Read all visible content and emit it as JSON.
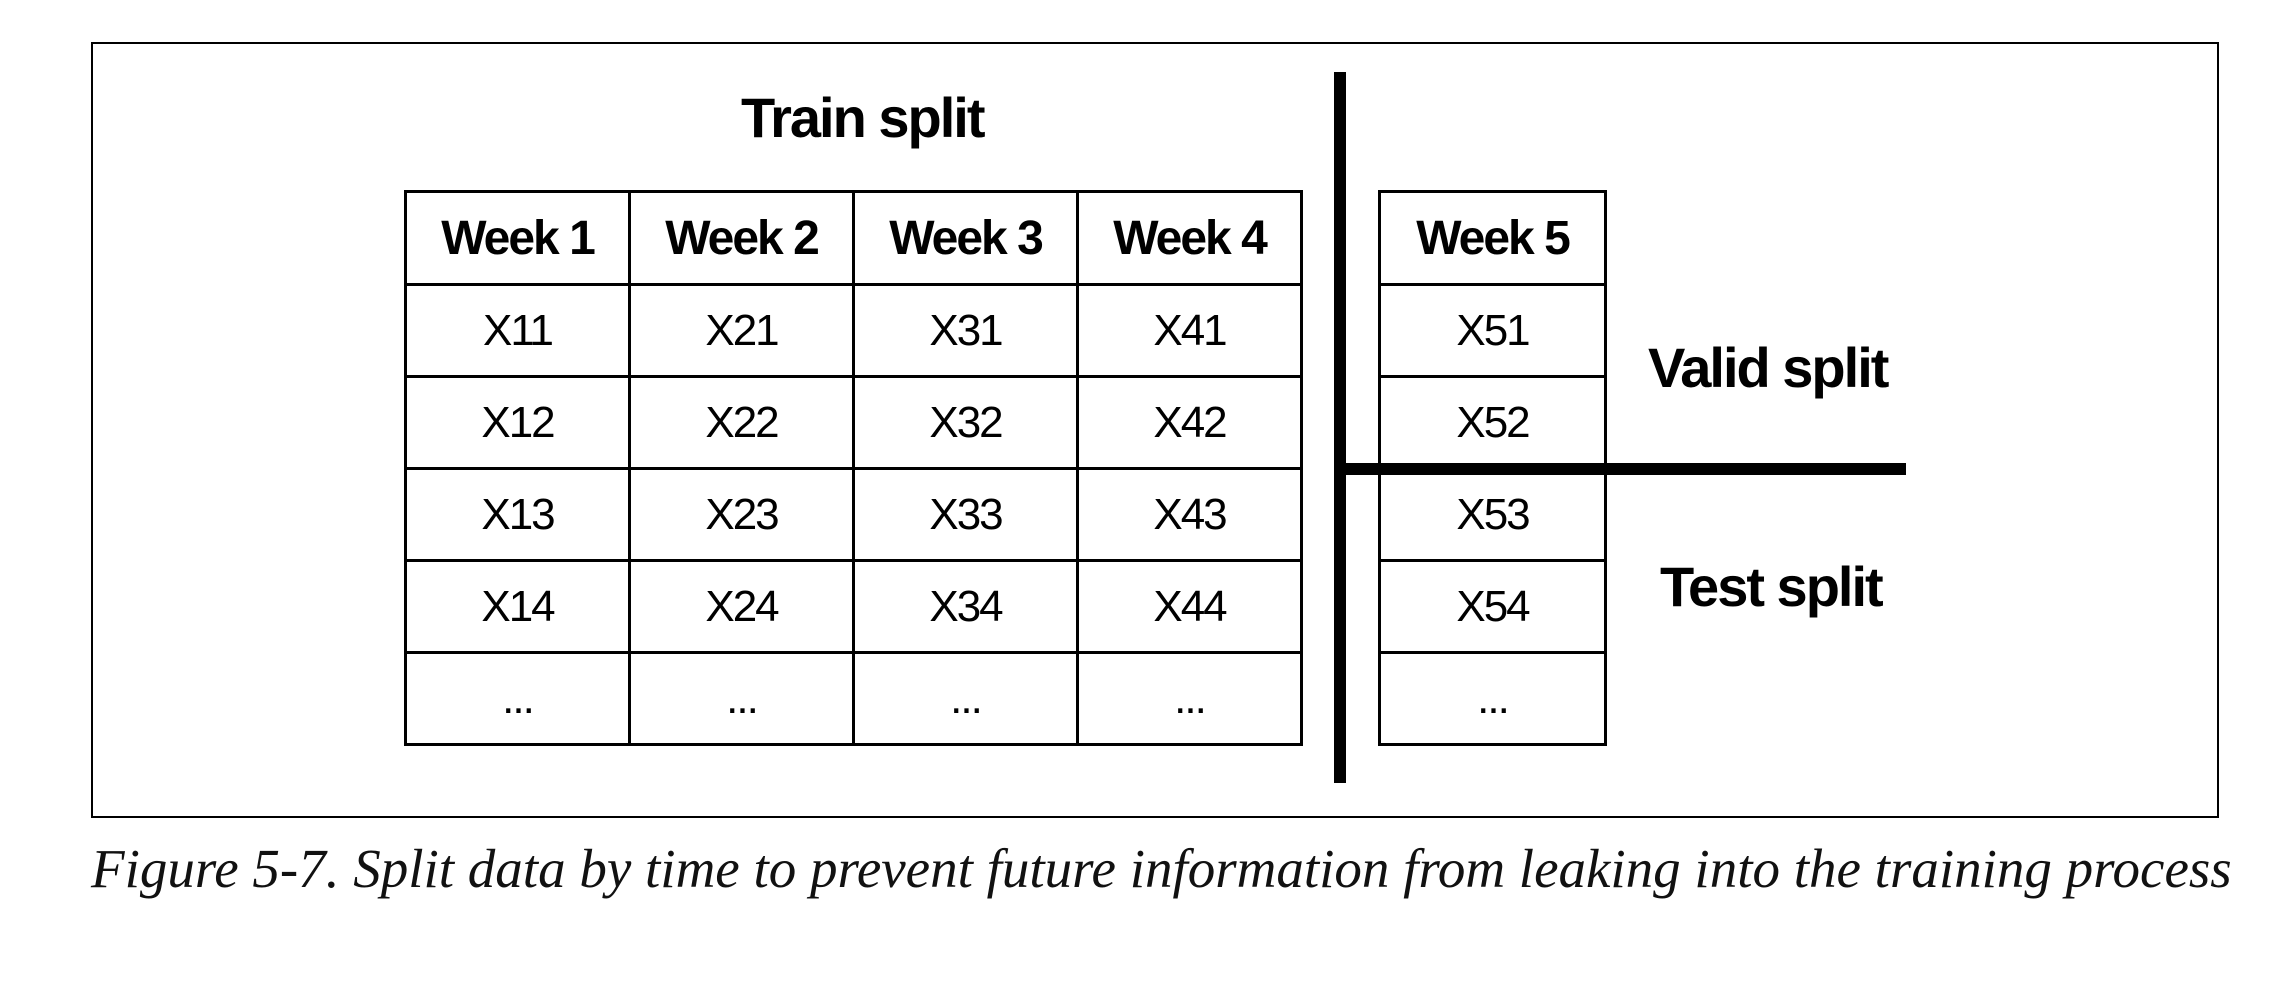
{
  "figure": {
    "train_label": "Train split",
    "valid_label": "Valid split",
    "test_label": "Test split",
    "train_table": {
      "headers": [
        "Week 1",
        "Week 2",
        "Week 3",
        "Week 4"
      ],
      "rows": [
        [
          "X11",
          "X21",
          "X31",
          "X41"
        ],
        [
          "X12",
          "X22",
          "X32",
          "X42"
        ],
        [
          "X13",
          "X23",
          "X33",
          "X43"
        ],
        [
          "X14",
          "X24",
          "X34",
          "X44"
        ],
        [
          "...",
          "...",
          "...",
          "..."
        ]
      ]
    },
    "week5_table": {
      "header": "Week 5",
      "rows": [
        "X51",
        "X52",
        "X53",
        "X54",
        "..."
      ]
    }
  },
  "caption": "Figure 5-7. Split data by time to prevent future information from leaking into the training process"
}
